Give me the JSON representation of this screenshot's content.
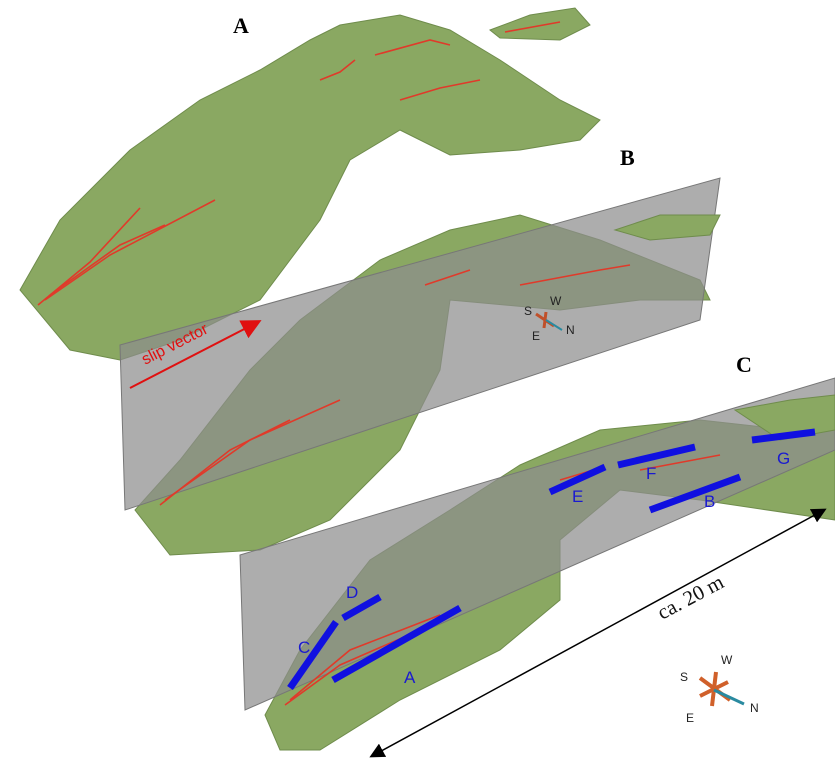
{
  "panels": [
    {
      "label": "A"
    },
    {
      "label": "B",
      "annotation": "slip vector",
      "compass": {
        "s": "S",
        "w": "W",
        "n": "N",
        "e": "E"
      }
    },
    {
      "label": "C",
      "segments": [
        "A",
        "B",
        "C",
        "D",
        "E",
        "F",
        "G"
      ],
      "scale": "ca. 20 m",
      "compass": {
        "s": "S",
        "w": "W",
        "n": "N",
        "e": "E"
      }
    }
  ]
}
